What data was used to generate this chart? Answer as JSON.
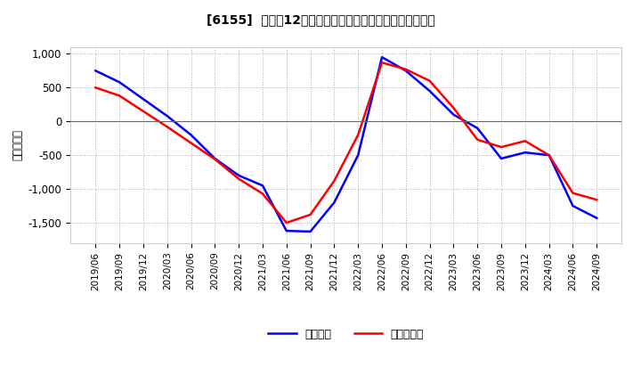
{
  "title": "[6155]  利益だ12か月移動合計の対前年同期増減額の推移",
  "ylabel": "（百万円）",
  "background_color": "#ffffff",
  "plot_bg_color": "#ffffff",
  "grid_color": "#aaaaaa",
  "ylim": [
    -1800,
    1100
  ],
  "yticks": [
    -1500,
    -1000,
    -500,
    0,
    500,
    1000
  ],
  "legend_labels": [
    "経常利益",
    "当期純利益"
  ],
  "line_colors": [
    "#0000ff",
    "#ff0000"
  ],
  "x_labels": [
    "2019/06",
    "2019/09",
    "2019/12",
    "2020/03",
    "2020/06",
    "2020/09",
    "2020/12",
    "2021/03",
    "2021/06",
    "2021/09",
    "2021/12",
    "2022/03",
    "2022/06",
    "2022/09",
    "2022/12",
    "2023/03",
    "2023/06",
    "2023/09",
    "2023/12",
    "2024/03",
    "2024/06",
    "2024/09"
  ],
  "operating_profit": [
    750,
    580,
    330,
    80,
    -200,
    -550,
    -800,
    -950,
    -1620,
    -1630,
    -1200,
    -500,
    950,
    750,
    450,
    100,
    -100,
    -550,
    -460,
    -500,
    -1250,
    -1430
  ],
  "net_profit": [
    500,
    380,
    150,
    -80,
    -320,
    -560,
    -850,
    -1070,
    -1500,
    -1380,
    -880,
    -200,
    870,
    770,
    600,
    200,
    -270,
    -380,
    -290,
    -500,
    -1060,
    -1160
  ]
}
